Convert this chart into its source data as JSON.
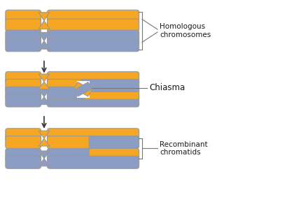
{
  "orange": "#F5A623",
  "blue": "#8B9DC3",
  "ec": "#999999",
  "background": "#FFFFFF",
  "text_color": "#1a1a1a",
  "arrow_color": "#333333",
  "label1": "Homologous\nchromosomes",
  "label2": "Chiasma",
  "label3": "Recombinant\nchromatids",
  "fig_width": 4.31,
  "fig_height": 3.12
}
